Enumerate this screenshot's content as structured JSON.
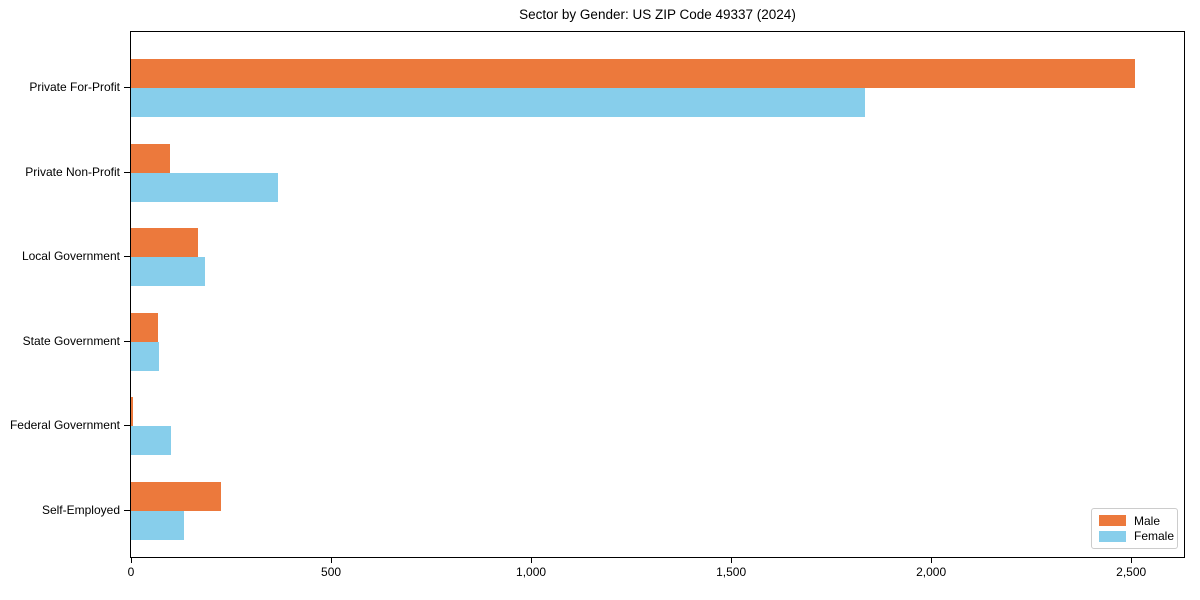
{
  "chart_data": {
    "type": "bar",
    "orientation": "horizontal",
    "title": "Sector by Gender: US ZIP Code 49337 (2024)",
    "categories": [
      "Private For-Profit",
      "Private Non-Profit",
      "Local Government",
      "State Government",
      "Federal Government",
      "Self-Employed"
    ],
    "series": [
      {
        "name": "Male",
        "color": "#EC793C",
        "values": [
          2510,
          97,
          167,
          67,
          4,
          225
        ]
      },
      {
        "name": "Female",
        "color": "#87CEEB",
        "values": [
          1834,
          367,
          185,
          70,
          100,
          132
        ]
      }
    ],
    "xlim": [
      0,
      2632
    ],
    "x_ticks": [
      0,
      500,
      1000,
      1500,
      2000,
      2500
    ],
    "x_tick_labels": [
      "0",
      "500",
      "1,000",
      "1,500",
      "2,000",
      "2,500"
    ],
    "xlabel": "",
    "ylabel": "",
    "grid": false,
    "legend_position": "lower right",
    "colors": {
      "male": "#EC793C",
      "female": "#87CEEB",
      "spine": "#000000",
      "legend_border": "#cccccc",
      "background": "#ffffff"
    }
  }
}
